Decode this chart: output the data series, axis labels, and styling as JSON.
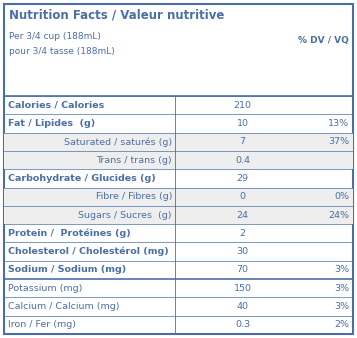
{
  "title": "Nutrition Facts / Valeur nutritive",
  "serving_line1": "Per 3/4 cup (188mL)",
  "serving_line2": "pour 3/4 tasse (188mL)",
  "dv_header": "% DV / VQ",
  "rows": [
    {
      "label": "Calories / Calories",
      "bold": true,
      "indent": false,
      "value": "210",
      "dv": "",
      "thick_top": false
    },
    {
      "label": "Fat / Lipides  (g)",
      "bold": true,
      "indent": false,
      "value": "10",
      "dv": "13%",
      "thick_top": false
    },
    {
      "label": "Saturated / saturés (g)",
      "bold": false,
      "indent": true,
      "value": "7",
      "dv": "37%",
      "thick_top": false
    },
    {
      "label": "Trans / trans (g)",
      "bold": false,
      "indent": true,
      "value": "0.4",
      "dv": "",
      "thick_top": false
    },
    {
      "label": "Carbohydrate / Glucides (g)",
      "bold": true,
      "indent": false,
      "value": "29",
      "dv": "",
      "thick_top": false
    },
    {
      "label": "Fibre / Fibres (g)",
      "bold": false,
      "indent": true,
      "value": "0",
      "dv": "0%",
      "thick_top": false
    },
    {
      "label": "Sugars / Sucres  (g)",
      "bold": false,
      "indent": true,
      "value": "24",
      "dv": "24%",
      "thick_top": false
    },
    {
      "label": "Protein /  Protéines (g)",
      "bold": true,
      "indent": false,
      "value": "2",
      "dv": "",
      "thick_top": false
    },
    {
      "label": "Cholesterol / Cholestérol (mg)",
      "bold": true,
      "indent": false,
      "value": "30",
      "dv": "",
      "thick_top": false
    },
    {
      "label": "Sodium / Sodium (mg)",
      "bold": true,
      "indent": false,
      "value": "70",
      "dv": "3%",
      "thick_top": false
    },
    {
      "label": "Potassium (mg)",
      "bold": false,
      "indent": false,
      "value": "150",
      "dv": "3%",
      "thick_top": true
    },
    {
      "label": "Calcium / Calcium (mg)",
      "bold": false,
      "indent": false,
      "value": "40",
      "dv": "3%",
      "thick_top": false
    },
    {
      "label": "Iron / Fer (mg)",
      "bold": false,
      "indent": false,
      "value": "0.3",
      "dv": "2%",
      "thick_top": false
    }
  ],
  "text_color": "#4a6fa5",
  "border_color": "#4a6fa5",
  "bg_color_indent": "#eeeeee",
  "bg_color_normal": "#ffffff",
  "fig_bg": "#ffffff"
}
